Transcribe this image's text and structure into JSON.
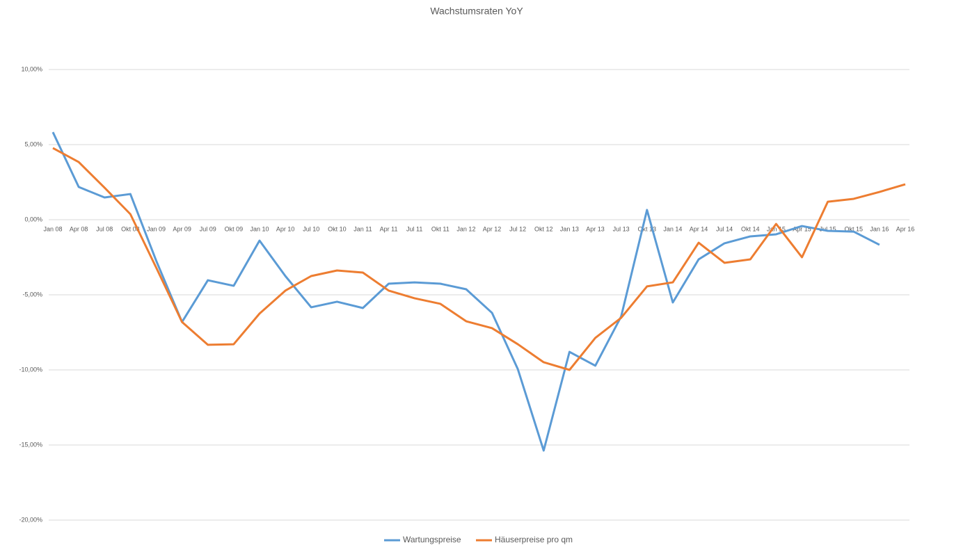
{
  "chart_data": {
    "type": "line",
    "title": "Wachstumsraten YoY",
    "categories": [
      "Jan 08",
      "Apr 08",
      "Jul 08",
      "Okt 08",
      "Jan 09",
      "Apr 09",
      "Jul 09",
      "Okt 09",
      "Jan 10",
      "Apr 10",
      "Jul 10",
      "Okt 10",
      "Jan 11",
      "Apr 11",
      "Jul 11",
      "Okt 11",
      "Jan 12",
      "Apr 12",
      "Jul 12",
      "Okt 12",
      "Jan 13",
      "Apr 13",
      "Jul 13",
      "Okt 13",
      "Jan 14",
      "Apr 14",
      "Jul 14",
      "Okt 14",
      "Jan 15",
      "Apr 15",
      "Jul 15",
      "Okt 15",
      "Jan 16",
      "Apr 16"
    ],
    "series": [
      {
        "name": "Wartungspreise",
        "color": "#5b9bd5",
        "values": [
          5.83,
          2.18,
          1.48,
          1.71,
          -2.73,
          -6.81,
          -4.03,
          -4.4,
          -1.39,
          -3.75,
          -5.83,
          -5.46,
          -5.88,
          -4.26,
          -4.17,
          -4.26,
          -4.63,
          -6.2,
          -9.95,
          -15.37,
          -8.8,
          -9.72,
          -6.44,
          0.65,
          -5.51,
          -2.64,
          -1.57,
          -1.11,
          -0.97,
          -0.42,
          -0.74,
          -0.79,
          -1.67,
          null
        ]
      },
      {
        "name": "Häuserpreise pro qm",
        "color": "#ed7d31",
        "values": [
          4.77,
          3.84,
          2.13,
          0.37,
          -3.19,
          -6.81,
          -8.33,
          -8.29,
          -6.25,
          -4.72,
          -3.75,
          -3.38,
          -3.52,
          -4.72,
          -5.23,
          -5.6,
          -6.76,
          -7.22,
          -8.29,
          -9.49,
          -10.0,
          -7.87,
          -6.53,
          -4.44,
          -4.17,
          -1.53,
          -2.87,
          -2.64,
          -0.28,
          -2.5,
          1.2,
          1.39,
          1.85,
          2.36
        ]
      }
    ],
    "ylim": [
      -20,
      10
    ],
    "yticks": [
      {
        "value": -20,
        "label": "-20,00%"
      },
      {
        "value": -15,
        "label": "-15,00%"
      },
      {
        "value": -10,
        "label": "-10,00%"
      },
      {
        "value": -5,
        "label": "-5,00%"
      },
      {
        "value": 0,
        "label": "0,00%"
      },
      {
        "value": 5,
        "label": "5,00%"
      },
      {
        "value": 10,
        "label": "10,00%"
      }
    ],
    "grid": true,
    "legend": "bottom"
  }
}
